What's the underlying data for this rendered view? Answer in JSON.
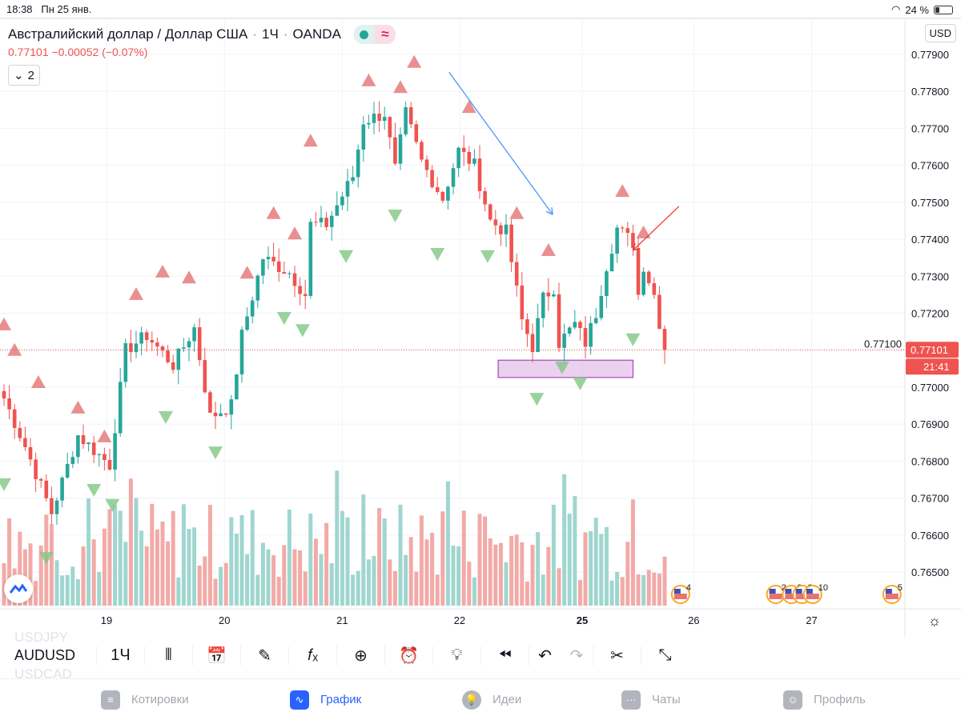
{
  "status_bar": {
    "time": "18:38",
    "date": "Пн 25 янв.",
    "battery": "24 %",
    "battery_level": 0.24
  },
  "header": {
    "title": "Австралийский доллар / Доллар США",
    "interval": "1Ч",
    "exchange": "OANDA",
    "sep": "·",
    "last": "0.77101",
    "change": "−0.00052",
    "change_pct": "(−0.07%)",
    "collapse_count": "2",
    "currency": "USD"
  },
  "colors": {
    "up": "#26a69a",
    "down": "#ef5350",
    "up_vol": "#9fd6cf",
    "down_vol": "#f2aaa7",
    "up_signal": "#e57373",
    "down_signal": "#81c784"
  },
  "chart_data": {
    "type": "candlestick",
    "symbol": "AUDUSD",
    "ylim": [
      0.7645,
      0.7795
    ],
    "price_ticks": [
      "0.77900",
      "0.77800",
      "0.77700",
      "0.77600",
      "0.77500",
      "0.77400",
      "0.77300",
      "0.77200",
      "0.77100",
      "0.77000",
      "0.76900",
      "0.76800",
      "0.76700",
      "0.76600",
      "0.76500"
    ],
    "x_ticks": [
      {
        "label": "19",
        "index": 19.4
      },
      {
        "label": "20",
        "index": 41.7
      },
      {
        "label": "21",
        "index": 64
      },
      {
        "label": "22",
        "index": 86.2
      },
      {
        "label": "25",
        "index": 109.4,
        "bold": true
      },
      {
        "label": "26",
        "index": 130.5
      },
      {
        "label": "27",
        "index": 152.8
      }
    ],
    "candle_count": 126,
    "close_waypoints": [
      [
        0,
        0.7697
      ],
      [
        4,
        0.7684
      ],
      [
        9,
        0.7666
      ],
      [
        14,
        0.7687
      ],
      [
        20,
        0.7679
      ],
      [
        23,
        0.771
      ],
      [
        27,
        0.7714
      ],
      [
        32,
        0.7706
      ],
      [
        36,
        0.7716
      ],
      [
        39,
        0.7692
      ],
      [
        43,
        0.7695
      ],
      [
        45,
        0.7714
      ],
      [
        49,
        0.7735
      ],
      [
        54,
        0.7731
      ],
      [
        57,
        0.7725
      ],
      [
        58,
        0.7744
      ],
      [
        61,
        0.7744
      ],
      [
        66,
        0.7757
      ],
      [
        68,
        0.7772
      ],
      [
        72,
        0.7774
      ],
      [
        74,
        0.7759
      ],
      [
        76,
        0.7774
      ],
      [
        79,
        0.7761
      ],
      [
        83,
        0.7751
      ],
      [
        86,
        0.7764
      ],
      [
        89,
        0.776
      ],
      [
        92,
        0.7745
      ],
      [
        95,
        0.7742
      ],
      [
        98,
        0.7718
      ],
      [
        100,
        0.7711
      ],
      [
        102,
        0.7724
      ],
      [
        104,
        0.7727
      ],
      [
        105,
        0.7712
      ],
      [
        108,
        0.7717
      ],
      [
        110,
        0.7712
      ],
      [
        112,
        0.772
      ],
      [
        114,
        0.7733
      ],
      [
        116,
        0.7743
      ],
      [
        119,
        0.7739
      ],
      [
        120,
        0.7725
      ],
      [
        121,
        0.7733
      ],
      [
        123,
        0.7725
      ],
      [
        125,
        0.771
      ]
    ],
    "sell_signals": [
      [
        0,
        0.77171
      ],
      [
        2,
        0.77102
      ],
      [
        6.5,
        0.77015
      ],
      [
        14,
        0.76946
      ],
      [
        19,
        0.76868
      ],
      [
        25,
        0.77253
      ],
      [
        30,
        0.77314
      ],
      [
        35,
        0.77298
      ],
      [
        46,
        0.77311
      ],
      [
        51,
        0.77472
      ],
      [
        55,
        0.77417
      ],
      [
        58,
        0.77668
      ],
      [
        69,
        0.77831
      ],
      [
        75,
        0.77813
      ],
      [
        77.6,
        0.77881
      ],
      [
        88,
        0.77759
      ],
      [
        97,
        0.77472
      ],
      [
        103,
        0.77372
      ],
      [
        117,
        0.77532
      ],
      [
        121,
        0.7742
      ]
    ],
    "buy_signals": [
      [
        0,
        0.76736
      ],
      [
        8,
        0.76537
      ],
      [
        17,
        0.76721
      ],
      [
        20.5,
        0.7668
      ],
      [
        30.6,
        0.76918
      ],
      [
        40,
        0.76822
      ],
      [
        53,
        0.77186
      ],
      [
        56.5,
        0.77153
      ],
      [
        64.7,
        0.77353
      ],
      [
        74,
        0.77463
      ],
      [
        82,
        0.77359
      ],
      [
        91.5,
        0.77353
      ],
      [
        100.8,
        0.76967
      ],
      [
        105.6,
        0.77052
      ],
      [
        109,
        0.77009
      ],
      [
        119,
        0.77128
      ]
    ],
    "zone": {
      "from_index": 93.5,
      "to_index": 119,
      "top": 0.77073,
      "bottom": 0.77026
    },
    "trend_arrow": {
      "from": [
        84.2,
        0.77852
      ],
      "to": [
        103.8,
        0.77467
      ]
    },
    "red_arrow": {
      "from": [
        127.7,
        0.77489
      ],
      "to": [
        119,
        0.7737
      ]
    },
    "last_price": "0.77101",
    "last_price_value": 0.77101,
    "countdown": "21:41",
    "events": [
      {
        "index": 128,
        "label": "4"
      },
      {
        "index": 146,
        "label": "2"
      },
      {
        "index": 149,
        "label": "8"
      },
      {
        "index": 151,
        "label": "8"
      },
      {
        "index": 153,
        "label": "10"
      },
      {
        "index": 168,
        "label": "5"
      }
    ]
  },
  "toolbar": {
    "symbol": "AUDUSD",
    "symbol_above": "USDJPY",
    "symbol_below": "USDCAD",
    "interval": "1Ч"
  },
  "tabs": [
    {
      "label": "Котировки",
      "icon": "≡"
    },
    {
      "label": "График",
      "icon": "∿",
      "active": true
    },
    {
      "label": "Идеи",
      "icon": "💡"
    },
    {
      "label": "Чаты",
      "icon": "···"
    },
    {
      "label": "Профиль",
      "icon": "☺"
    }
  ]
}
